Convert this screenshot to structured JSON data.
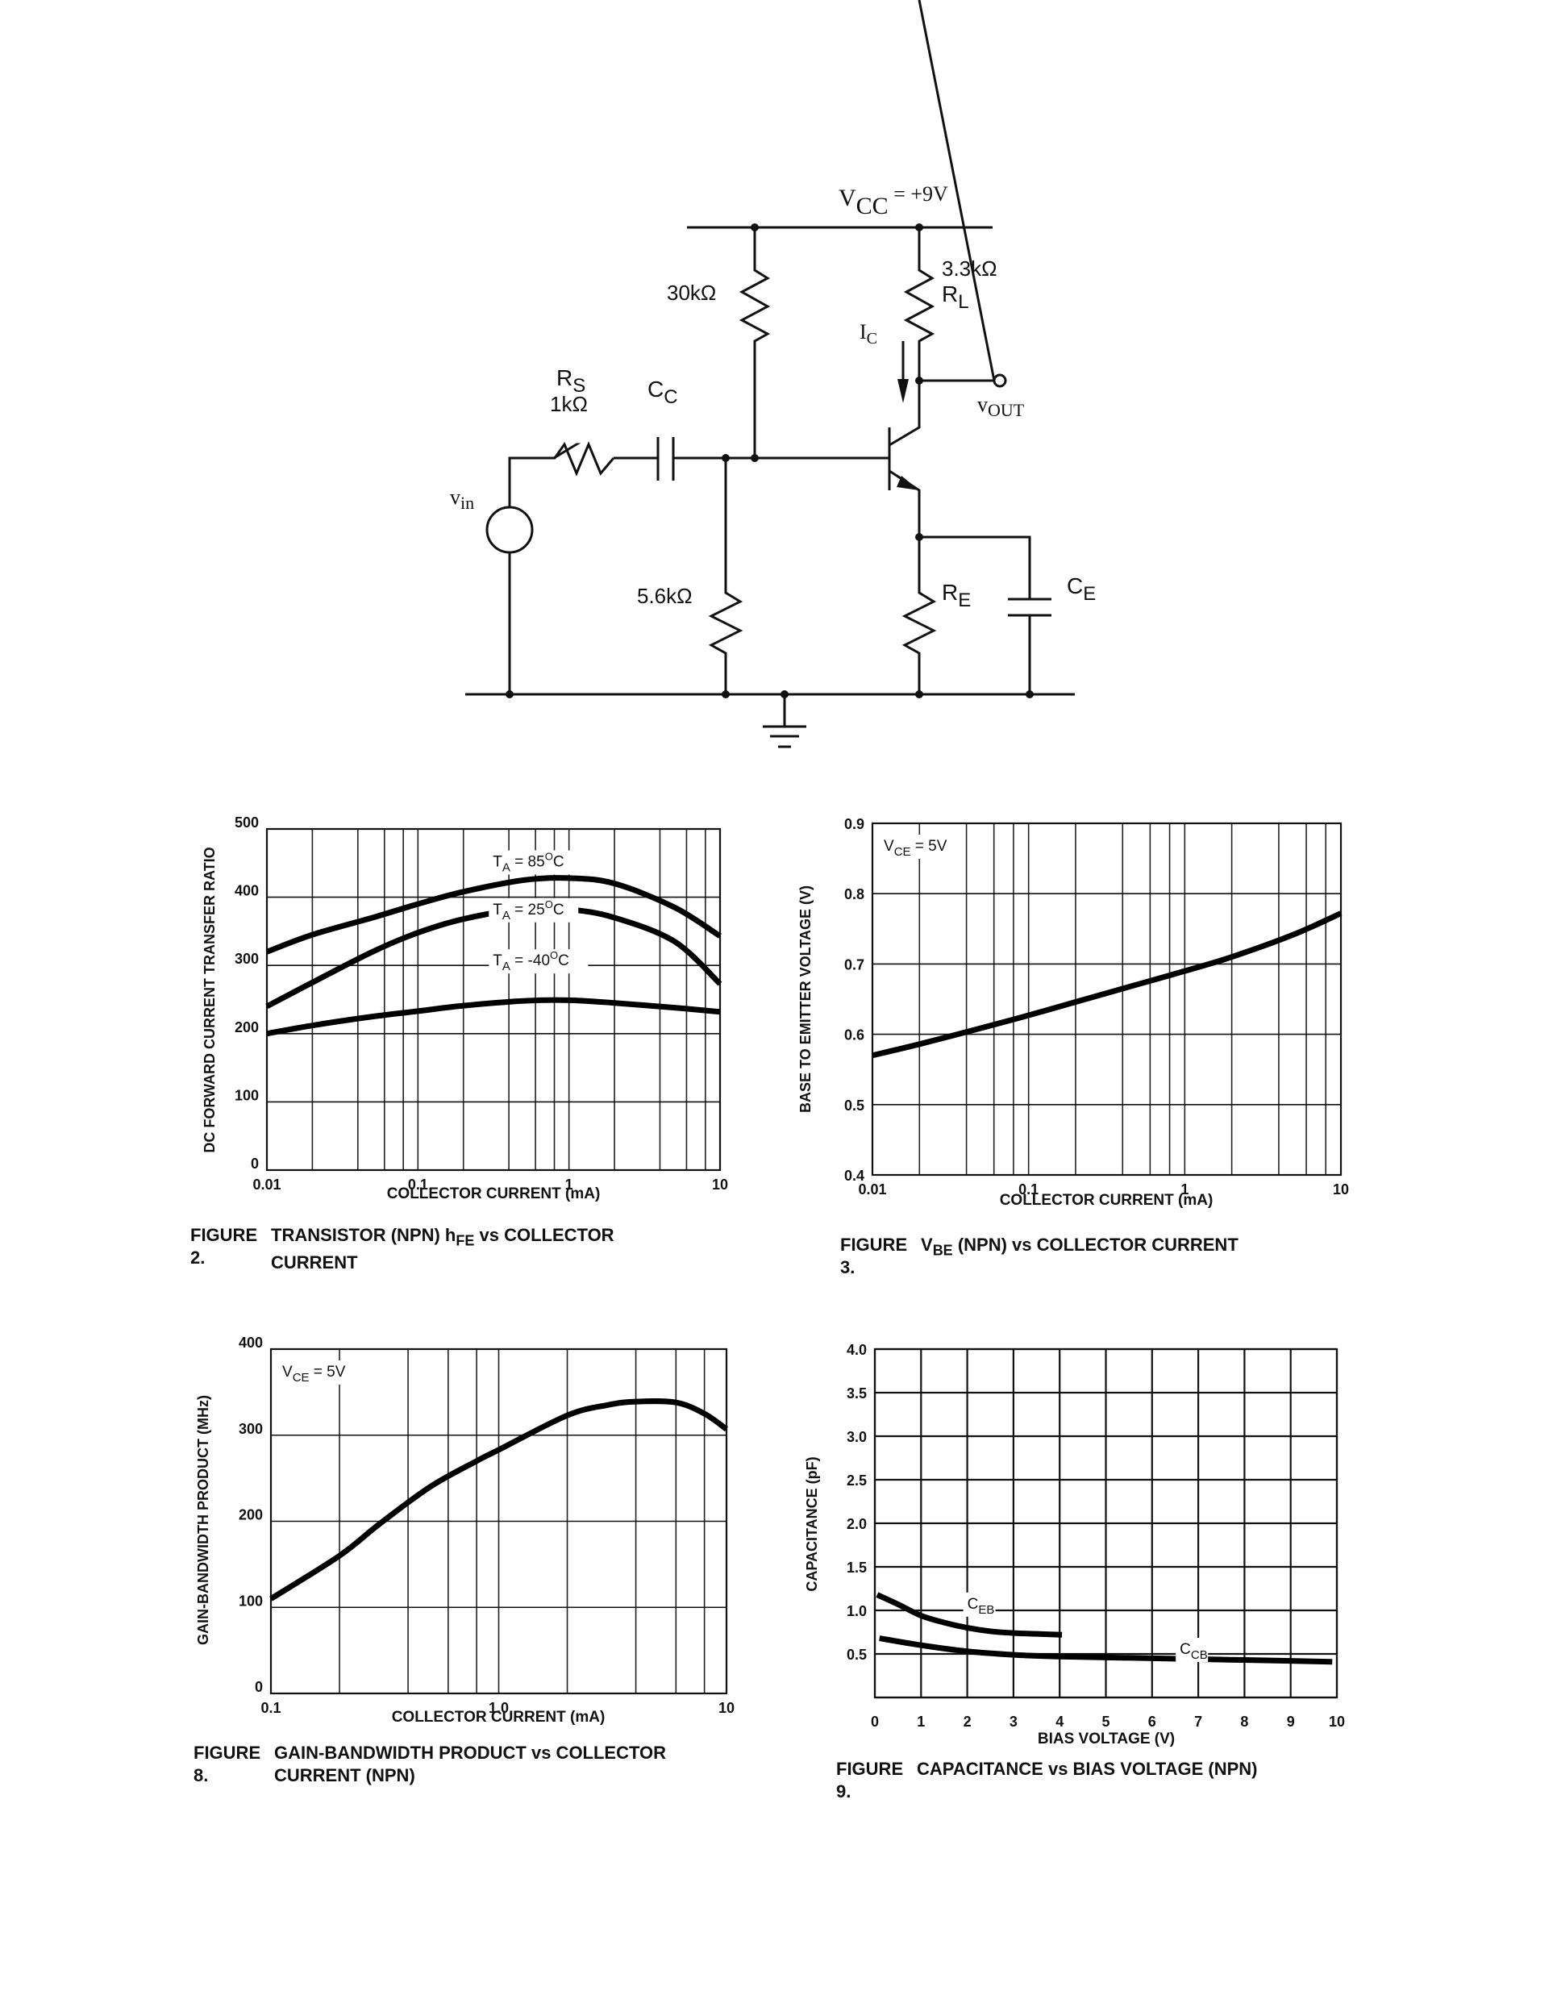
{
  "circuit": {
    "vcc_label": "V",
    "vcc_sub": "CC",
    "vcc_value": " = +9V",
    "r_top_bias": "30kΩ",
    "r_bottom_bias": "5.6kΩ",
    "rl_value": "3.3kΩ",
    "rl_label": "R",
    "rl_sub": "L",
    "rs_label": "R",
    "rs_sub": "S",
    "rs_value": "1kΩ",
    "cc_label": "C",
    "cc_sub": "C",
    "ic_label": "I",
    "ic_sub": "C",
    "vout_label": "v",
    "vout_sub": "OUT",
    "vin_label": "v",
    "vin_sub": "in",
    "re_label": "R",
    "re_sub": "E",
    "ce_label": "C",
    "ce_sub": "E"
  },
  "figures": {
    "fig2": {
      "number": "FIGURE   2.",
      "caption_line1_pre": "TRANSISTOR (NPN) h",
      "caption_line1_sub": "FE",
      "caption_line1_post": " vs COLLECTOR",
      "caption_line2": "CURRENT"
    },
    "fig3": {
      "number": "FIGURE   3.",
      "caption_pre": "V",
      "caption_sub": "BE",
      "caption_post": " (NPN) vs COLLECTOR CURRENT"
    },
    "fig8": {
      "number": "FIGURE   8.",
      "caption_line1": "GAIN-BANDWIDTH PRODUCT vs COLLECTOR",
      "caption_line2": "CURRENT (NPN)"
    },
    "fig9": {
      "number": "FIGURE   9.",
      "caption": "CAPACITANCE vs BIAS VOLTAGE (NPN)"
    }
  },
  "chart_data": [
    {
      "id": "fig2",
      "type": "line",
      "title": "TRANSISTOR (NPN) hFE vs COLLECTOR CURRENT",
      "xlabel": "COLLECTOR CURRENT (mA)",
      "ylabel": "DC FORWARD CURRENT TRANSFER RATIO",
      "xscale": "log",
      "xlim": [
        0.01,
        10
      ],
      "ylim": [
        0,
        500
      ],
      "xticks": [
        "0.01",
        "0.1",
        "1",
        "10"
      ],
      "yticks": [
        "0",
        "100",
        "200",
        "300",
        "400",
        "500"
      ],
      "grid": true,
      "series": [
        {
          "name": "TA = 85°C",
          "label_pre": "T",
          "label_sub": "A",
          "label_post": " = 85",
          "label_sup": "O",
          "label_end": "C",
          "x": [
            0.01,
            0.02,
            0.05,
            0.1,
            0.2,
            0.5,
            1,
            2,
            5,
            10
          ],
          "y": [
            320,
            345,
            370,
            390,
            408,
            425,
            428,
            420,
            385,
            343
          ]
        },
        {
          "name": "TA = 25°C",
          "label_pre": "T",
          "label_sub": "A",
          "label_post": " = 25",
          "label_sup": "O",
          "label_end": "C",
          "x": [
            0.01,
            0.02,
            0.05,
            0.1,
            0.2,
            0.5,
            1,
            2,
            5,
            10
          ],
          "y": [
            240,
            275,
            320,
            348,
            368,
            383,
            382,
            370,
            335,
            273
          ]
        },
        {
          "name": "TA = -40°C",
          "label_pre": "T",
          "label_sub": "A",
          "label_post": " = -40",
          "label_sup": "O",
          "label_end": "C",
          "x": [
            0.01,
            0.02,
            0.05,
            0.1,
            0.2,
            0.5,
            1,
            2,
            5,
            10
          ],
          "y": [
            200,
            212,
            225,
            233,
            241,
            248,
            249,
            245,
            238,
            232
          ]
        }
      ]
    },
    {
      "id": "fig3",
      "type": "line",
      "title": "VBE (NPN) vs COLLECTOR CURRENT",
      "xlabel": "COLLECTOR CURRENT (mA)",
      "ylabel": "BASE TO EMITTER VOLTAGE (V)",
      "xscale": "log",
      "xlim": [
        0.01,
        10
      ],
      "ylim": [
        0.4,
        0.9
      ],
      "xticks": [
        "0.01",
        "0.1",
        "1",
        "10"
      ],
      "yticks": [
        "0.4",
        "0.5",
        "0.6",
        "0.7",
        "0.8",
        "0.9"
      ],
      "grid": true,
      "annotation": {
        "pre": "V",
        "sub": "CE",
        "post": " = 5V"
      },
      "series": [
        {
          "name": "VCE = 5V",
          "x": [
            0.01,
            0.02,
            0.05,
            0.1,
            0.2,
            0.5,
            1,
            2,
            5,
            10
          ],
          "y": [
            0.57,
            0.586,
            0.609,
            0.627,
            0.646,
            0.671,
            0.69,
            0.71,
            0.742,
            0.772
          ]
        }
      ]
    },
    {
      "id": "fig8",
      "type": "line",
      "title": "GAIN-BANDWIDTH PRODUCT vs COLLECTOR CURRENT (NPN)",
      "xlabel": "COLLECTOR CURRENT (mA)",
      "ylabel": "GAIN-BANDWIDTH PRODUCT (MHz)",
      "xscale": "log",
      "xlim": [
        0.1,
        10
      ],
      "ylim": [
        0,
        400
      ],
      "xticks": [
        "0.1",
        "1.0",
        "10"
      ],
      "yticks": [
        "0",
        "100",
        "200",
        "300",
        "400"
      ],
      "grid": true,
      "annotation": {
        "pre": "V",
        "sub": "CE",
        "post": " = 5V"
      },
      "series": [
        {
          "name": "VCE = 5V",
          "x": [
            0.1,
            0.2,
            0.3,
            0.5,
            0.8,
            1.0,
            2,
            3,
            4,
            6,
            8,
            10
          ],
          "y": [
            110,
            160,
            197,
            240,
            270,
            283,
            323,
            335,
            339,
            338,
            325,
            307
          ]
        }
      ]
    },
    {
      "id": "fig9",
      "type": "line",
      "title": "CAPACITANCE vs BIAS VOLTAGE (NPN)",
      "xlabel": "BIAS VOLTAGE (V)",
      "ylabel": "CAPACITANCE (pF)",
      "xscale": "linear",
      "xlim": [
        0,
        10
      ],
      "ylim": [
        0,
        4.0
      ],
      "xticks": [
        "0",
        "1",
        "2",
        "3",
        "4",
        "5",
        "6",
        "7",
        "8",
        "9",
        "10"
      ],
      "yticks": [
        "0.5",
        "1.0",
        "1.5",
        "2.0",
        "2.5",
        "3.0",
        "3.5",
        "4.0"
      ],
      "grid": true,
      "series": [
        {
          "name": "CEB",
          "label_pre": "C",
          "label_sub": "EB",
          "x": [
            0.05,
            0.5,
            1,
            1.5,
            2,
            2.5,
            3,
            3.5,
            4.05
          ],
          "y": [
            1.18,
            1.07,
            0.94,
            0.86,
            0.8,
            0.76,
            0.74,
            0.73,
            0.72
          ]
        },
        {
          "name": "CCB",
          "label_pre": "C",
          "label_sub": "CB",
          "x": [
            0.1,
            1,
            2,
            3,
            4,
            5,
            6,
            7,
            8,
            9,
            9.9
          ],
          "y": [
            0.68,
            0.6,
            0.53,
            0.49,
            0.47,
            0.46,
            0.45,
            0.44,
            0.43,
            0.42,
            0.41
          ]
        }
      ]
    }
  ],
  "plots": {
    "fig2": {
      "ylabel": "DC FORWARD CURRENT TRANSFER RATIO",
      "xlabel": "COLLECTOR CURRENT (mA)"
    },
    "fig3": {
      "ylabel": "BASE TO EMITTER VOLTAGE (V)",
      "xlabel": "COLLECTOR CURRENT (mA)"
    },
    "fig8": {
      "ylabel": "GAIN-BANDWIDTH PRODUCT (MHz)",
      "xlabel": "COLLECTOR CURRENT (mA)"
    },
    "fig9": {
      "ylabel": "CAPACITANCE (pF)",
      "xlabel": "BIAS VOLTAGE (V)"
    }
  }
}
